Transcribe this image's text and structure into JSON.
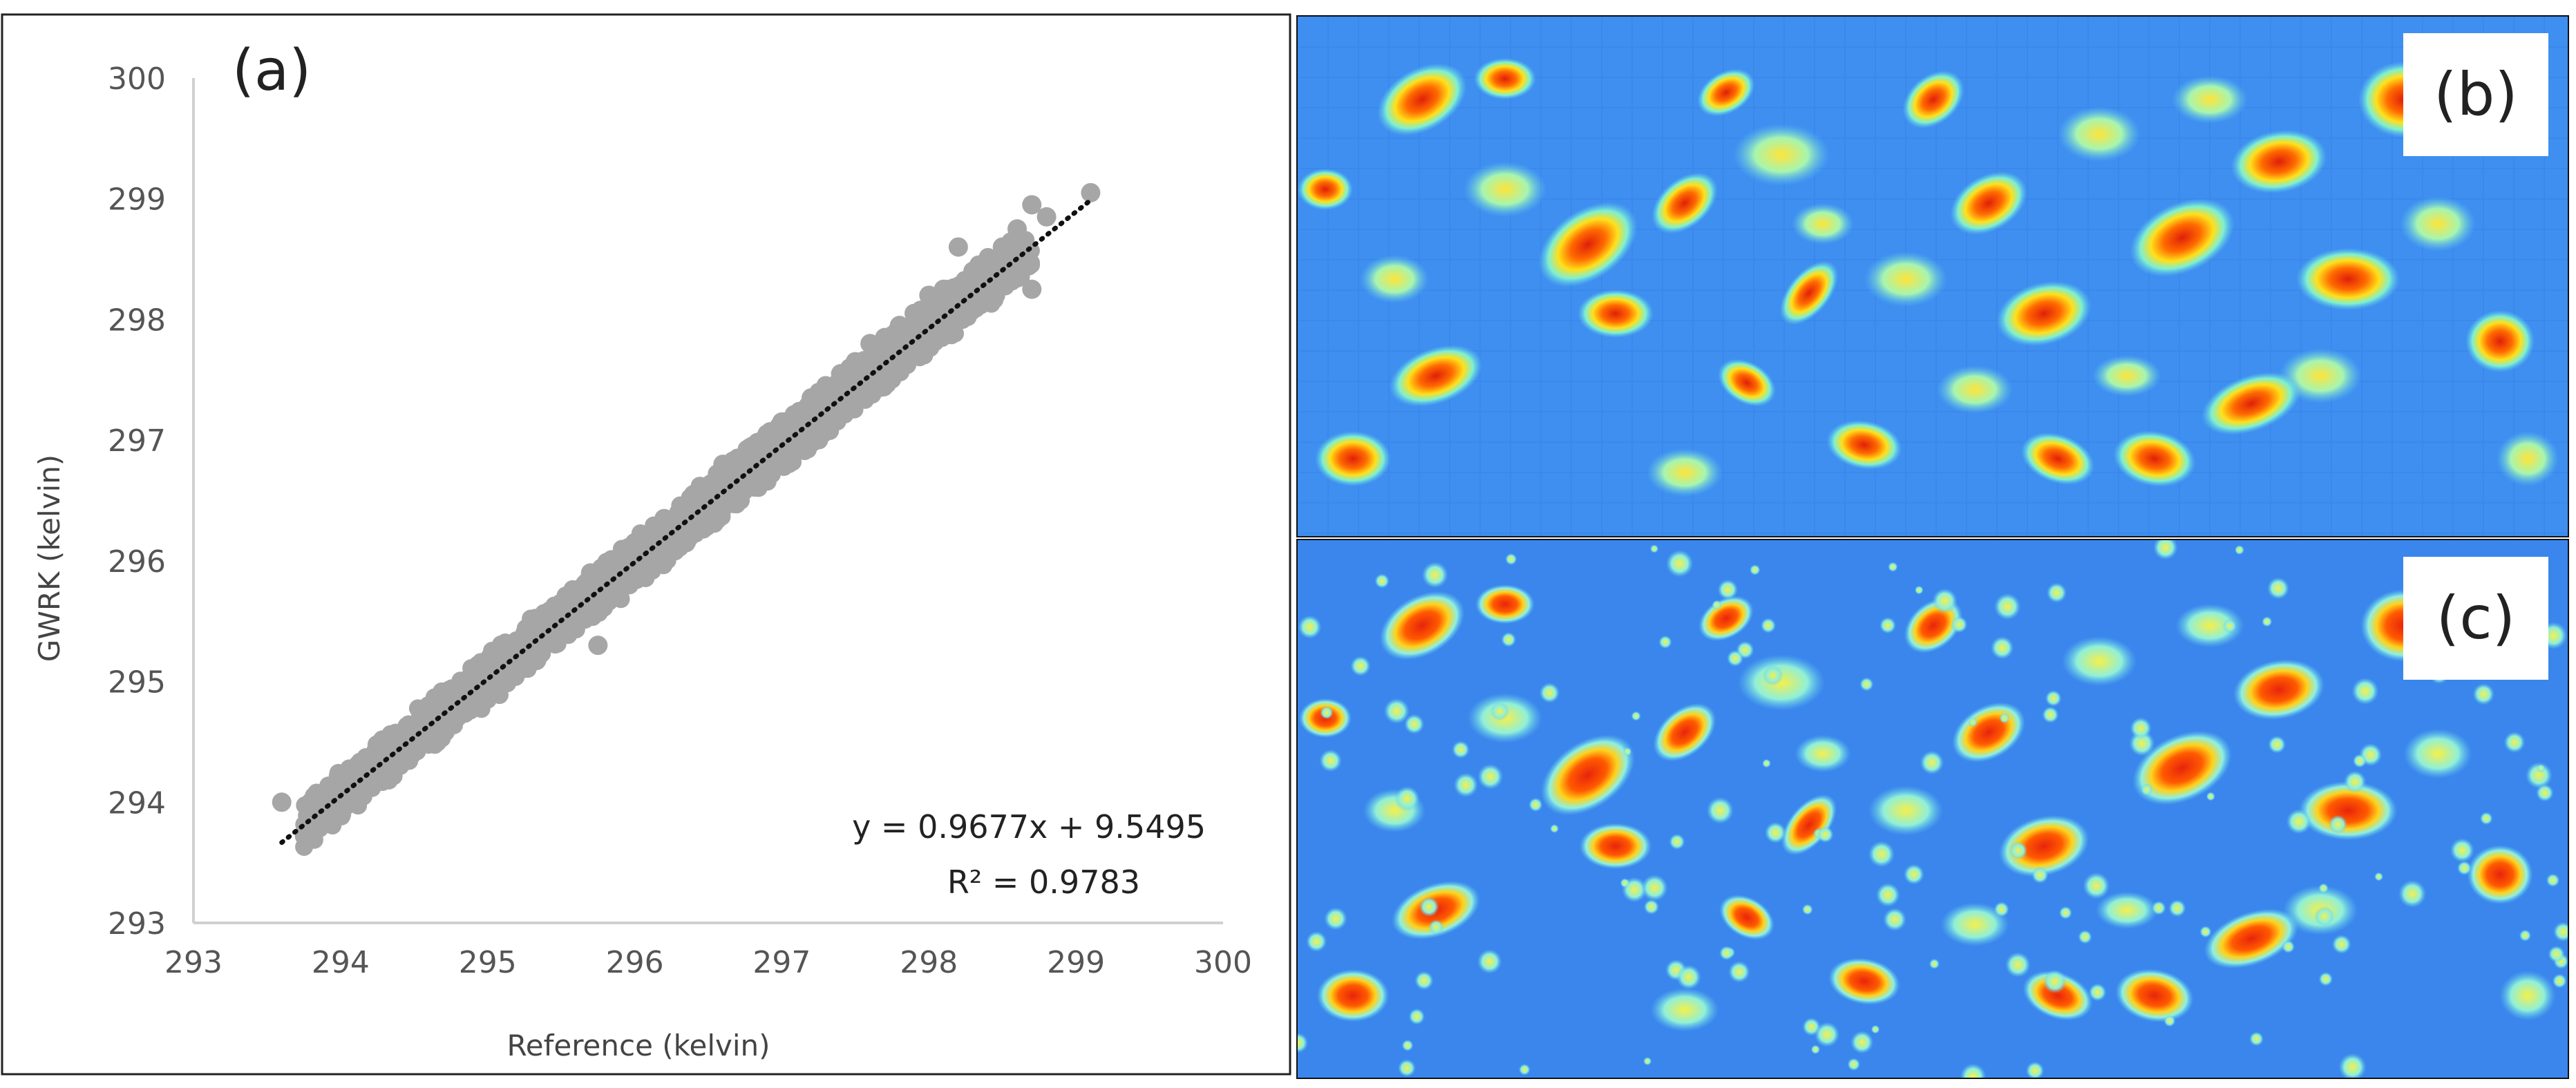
{
  "panels": {
    "a": {
      "label": "(a)"
    },
    "b": {
      "label": "(b)"
    },
    "c": {
      "label": "(c)"
    }
  },
  "chart_data": {
    "type": "scatter",
    "title": "",
    "xlabel": "Reference (kelvin)",
    "ylabel": "GWRK (kelvin)",
    "xlim": [
      293,
      300
    ],
    "ylim": [
      293,
      300
    ],
    "x_ticks": [
      293,
      294,
      295,
      296,
      297,
      298,
      299,
      300
    ],
    "y_ticks": [
      293,
      294,
      295,
      296,
      297,
      298,
      299,
      300
    ],
    "grid": false,
    "legend": "none",
    "point_color": "#a6a6a6",
    "trendline": {
      "slope": 0.9677,
      "intercept": 9.5495,
      "x_range": [
        293.6,
        299.1
      ],
      "style": "dotted",
      "color": "#111111"
    },
    "equation": "y = 0.9677x + 9.5495",
    "r_squared": "R² = 0.9783",
    "points": [
      [
        293.6,
        294.0
      ],
      [
        293.85,
        293.9
      ],
      [
        294.0,
        293.95
      ],
      [
        294.1,
        294.2
      ],
      [
        294.25,
        294.3
      ],
      [
        294.4,
        294.45
      ],
      [
        294.5,
        294.55
      ],
      [
        294.6,
        294.6
      ],
      [
        294.7,
        294.8
      ],
      [
        294.8,
        294.85
      ],
      [
        294.9,
        295.0
      ],
      [
        295.0,
        295.1
      ],
      [
        295.05,
        294.95
      ],
      [
        295.1,
        295.25
      ],
      [
        295.2,
        295.3
      ],
      [
        295.3,
        295.45
      ],
      [
        295.4,
        295.5
      ],
      [
        295.5,
        295.65
      ],
      [
        295.6,
        295.7
      ],
      [
        295.7,
        295.9
      ],
      [
        295.8,
        295.85
      ],
      [
        295.9,
        296.0
      ],
      [
        295.75,
        295.3
      ],
      [
        296.0,
        296.15
      ],
      [
        296.1,
        296.2
      ],
      [
        296.2,
        296.35
      ],
      [
        296.3,
        296.4
      ],
      [
        296.4,
        296.55
      ],
      [
        296.5,
        296.6
      ],
      [
        296.6,
        296.8
      ],
      [
        296.7,
        296.85
      ],
      [
        296.8,
        296.95
      ],
      [
        296.9,
        297.05
      ],
      [
        297.0,
        297.15
      ],
      [
        297.1,
        297.2
      ],
      [
        297.2,
        297.35
      ],
      [
        297.3,
        297.45
      ],
      [
        297.4,
        297.55
      ],
      [
        297.5,
        297.65
      ],
      [
        297.6,
        297.8
      ],
      [
        297.7,
        297.85
      ],
      [
        297.8,
        297.95
      ],
      [
        297.9,
        298.05
      ],
      [
        298.0,
        298.2
      ],
      [
        298.1,
        298.25
      ],
      [
        298.2,
        298.6
      ],
      [
        298.3,
        298.4
      ],
      [
        298.4,
        298.5
      ],
      [
        298.5,
        298.6
      ],
      [
        298.6,
        298.75
      ],
      [
        298.7,
        298.95
      ],
      [
        298.8,
        298.85
      ],
      [
        298.7,
        298.25
      ],
      [
        299.1,
        299.05
      ]
    ]
  }
}
